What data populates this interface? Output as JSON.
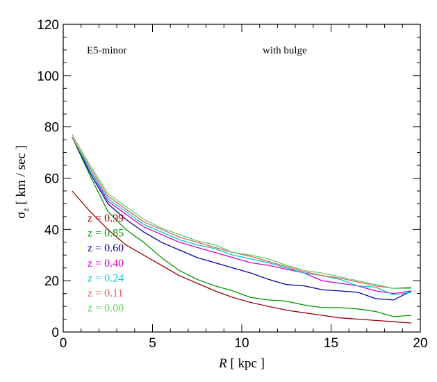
{
  "chart_data": {
    "type": "line",
    "xlabel_italic": "R",
    "xlabel_rest": " [ kpc ]",
    "ylabel_symbol": "σ",
    "ylabel_sub": "z",
    "ylabel_rest": " [ km / sec ]",
    "xlim": [
      0,
      20
    ],
    "ylim": [
      0,
      120
    ],
    "xticks": [
      0,
      5,
      10,
      15,
      20
    ],
    "yticks": [
      0,
      20,
      40,
      60,
      80,
      100,
      120
    ],
    "grid": false,
    "annotations": [
      "E5-minor",
      "with bulge"
    ],
    "legend_placement": "lower-left",
    "series": [
      {
        "name": "z = 0.99",
        "color": "#9b0000",
        "x": [
          0.5,
          1.5,
          2.5,
          3.5,
          4.5,
          5.5,
          6.5,
          7.5,
          8.5,
          9.5,
          10.5,
          11.5,
          12.5,
          13.5,
          14.5,
          15.5,
          16.5,
          17.5,
          18.5,
          19.5
        ],
        "y": [
          55,
          47,
          40,
          34,
          30,
          26,
          22,
          19,
          16,
          13.5,
          11.5,
          10,
          8.5,
          7.5,
          6.5,
          5.5,
          5,
          4.5,
          4,
          3.5
        ]
      },
      {
        "name": "z = 0.85",
        "color": "#009600",
        "x": [
          0.5,
          1.5,
          2.5,
          3.5,
          4.5,
          5.5,
          6.5,
          7.5,
          8.5,
          9.5,
          10.5,
          11.5,
          12.5,
          13.5,
          14.5,
          15.5,
          16.5,
          17.5,
          18.5,
          19.5
        ],
        "y": [
          76,
          61,
          47,
          40,
          35,
          29,
          24,
          20.5,
          18,
          16,
          13.5,
          12.5,
          12,
          10.5,
          9.5,
          9.5,
          9,
          8,
          6,
          6.5
        ]
      },
      {
        "name": "z = 0.60",
        "color": "#0000a0",
        "x": [
          0.5,
          1.5,
          2.5,
          3.5,
          4.5,
          5.5,
          6.5,
          7.5,
          8.5,
          9.5,
          10.5,
          11.5,
          12.5,
          13.5,
          14.5,
          15.5,
          16.5,
          17.5,
          18.5,
          19.5
        ],
        "y": [
          76,
          62,
          50,
          44,
          39,
          35,
          32,
          29,
          27,
          25,
          23,
          20.5,
          18.5,
          18,
          16.5,
          16,
          15.5,
          13,
          12.5,
          16
        ]
      },
      {
        "name": "z = 0.40",
        "color": "#d000d0",
        "x": [
          0.5,
          1.5,
          2.5,
          3.5,
          4.5,
          5.5,
          6.5,
          7.5,
          8.5,
          9.5,
          10.5,
          11.5,
          12.5,
          13.5,
          14.5,
          15.5,
          16.5,
          17.5,
          18.5,
          19.5
        ],
        "y": [
          76,
          63,
          51,
          46,
          41,
          38,
          35,
          33,
          31,
          29,
          27,
          26,
          24.5,
          23,
          20,
          19,
          18,
          16,
          15,
          16
        ]
      },
      {
        "name": "z = 0.24",
        "color": "#00c8d0",
        "x": [
          0.5,
          1.5,
          2.5,
          3.5,
          4.5,
          5.5,
          6.5,
          7.5,
          8.5,
          9.5,
          10.5,
          11.5,
          12.5,
          13.5,
          14.5,
          15.5,
          16.5,
          17.5,
          18.5,
          19.5
        ],
        "y": [
          76,
          63,
          52,
          47,
          42,
          39,
          36,
          34,
          32.5,
          30,
          28.5,
          27,
          25,
          23,
          22,
          20.5,
          18,
          17.5,
          14.5,
          15.5
        ]
      },
      {
        "name": "z = 0.11",
        "color": "#e06060",
        "x": [
          0.5,
          1.5,
          2.5,
          3.5,
          4.5,
          5.5,
          6.5,
          7.5,
          8.5,
          9.5,
          10.5,
          11.5,
          12.5,
          13.5,
          14.5,
          15.5,
          16.5,
          17.5,
          18.5,
          19.5
        ],
        "y": [
          76,
          64,
          53,
          48,
          43,
          40,
          37,
          35,
          33,
          31,
          29.5,
          27.5,
          25.5,
          23.5,
          22,
          21,
          19.5,
          18,
          17,
          17.5
        ]
      },
      {
        "name": "z = 0.00",
        "color": "#60d060",
        "x": [
          0.5,
          1.5,
          2.5,
          3.5,
          4.5,
          5.5,
          6.5,
          7.5,
          8.5,
          9.5,
          10.5,
          11.5,
          12.5,
          13.5,
          14.5,
          15.5,
          16.5,
          17.5,
          18.5,
          19.5
        ],
        "y": [
          77,
          65,
          54,
          49,
          44,
          40.5,
          38,
          35.5,
          34,
          31,
          30,
          28.5,
          26,
          24,
          23,
          21.5,
          20,
          18.5,
          17,
          17
        ]
      }
    ]
  }
}
